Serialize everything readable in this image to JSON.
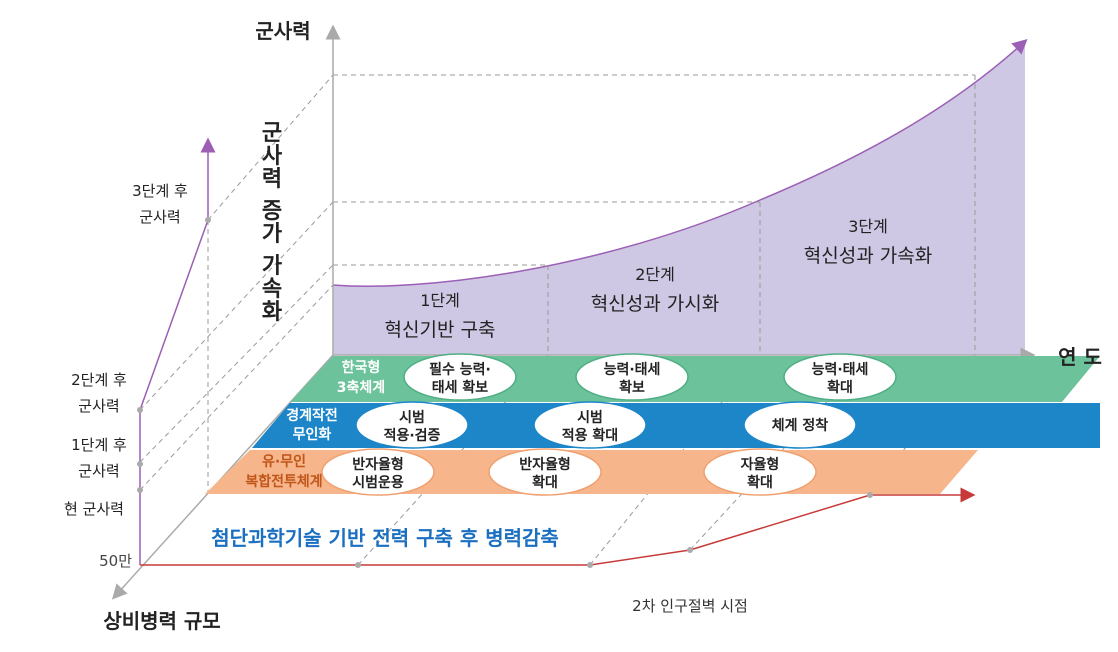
{
  "axes": {
    "vertical": "군사력",
    "horizontal": "연 도",
    "depth": "상비병력 규모",
    "depth_start": "50만",
    "growth_caption": [
      "군",
      "사",
      "력",
      "증",
      "가",
      "가",
      "속",
      "화"
    ]
  },
  "stages": [
    {
      "title": "1단계",
      "subtitle": "혁신기반 구축"
    },
    {
      "title": "2단계",
      "subtitle": "혁신성과 가시화"
    },
    {
      "title": "3단계",
      "subtitle": "혁신성과 가속화"
    }
  ],
  "left_levels": [
    {
      "line1": "3단계 후",
      "line2": "군사력"
    },
    {
      "line1": "2단계 후",
      "line2": "군사력"
    },
    {
      "line1": "1단계 후",
      "line2": "군사력"
    },
    {
      "line1": "현 군사력",
      "line2": ""
    }
  ],
  "bands": [
    {
      "label1": "한국형",
      "label2": "3축체계",
      "color": "#6cc39b",
      "items": [
        [
          "필수 능력·",
          "태세 확보"
        ],
        [
          "능력·태세",
          "확보"
        ],
        [
          "능력·태세",
          "확대"
        ]
      ]
    },
    {
      "label1": "경계작전",
      "label2": "무인화",
      "color": "#1c86c8",
      "items": [
        [
          "시범",
          "적용·검증"
        ],
        [
          "시범",
          "적용 확대"
        ],
        [
          "체계 정착",
          ""
        ]
      ]
    },
    {
      "label1": "유·무인",
      "label2": "복합전투체계",
      "color": "#f6b58a",
      "items": [
        [
          "반자율형",
          "시범운용"
        ],
        [
          "반자율형",
          "확대"
        ],
        [
          "자율형",
          "확대"
        ]
      ]
    }
  ],
  "reduction_caption": "첨단과학기술 기반 전력 구축 후 병력감축",
  "population_note": "2차 인구절벽 시점",
  "colors": {
    "purple_fill": "#cfc8e4",
    "purple_line": "#9b5fb5",
    "red_line": "#c83a3a",
    "blue_text": "#1a6fc0",
    "orange_text": "#c0561a"
  }
}
